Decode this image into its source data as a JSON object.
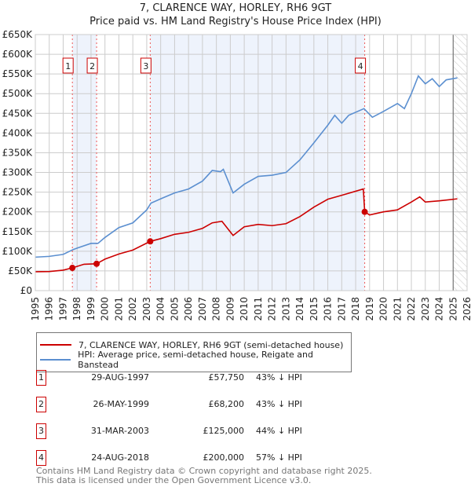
{
  "title": "7, CLARENCE WAY, HORLEY, RH6 9GT",
  "subtitle": "Price paid vs. HM Land Registry's House Price Index (HPI)",
  "colors": {
    "property": "#cc0000",
    "hpi": "#5b8fd0",
    "shade": "#eef3fc",
    "grid": "#cccccc"
  },
  "chart_data": {
    "type": "line",
    "title": "7, CLARENCE WAY, HORLEY, RH6 9GT",
    "subtitle": "Price paid vs. HM Land Registry's House Price Index (HPI)",
    "xlim": [
      1995,
      2026
    ],
    "ylim": [
      0,
      650000
    ],
    "x_ticks": [
      "1995",
      "1996",
      "1997",
      "1998",
      "1999",
      "2000",
      "2001",
      "2002",
      "2003",
      "2004",
      "2005",
      "2006",
      "2007",
      "2008",
      "2009",
      "2010",
      "2011",
      "2012",
      "2013",
      "2014",
      "2015",
      "2016",
      "2017",
      "2018",
      "2019",
      "2020",
      "2021",
      "2022",
      "2023",
      "2024",
      "2025",
      "2026"
    ],
    "y_ticks": [
      {
        "v": 0,
        "label": "£0"
      },
      {
        "v": 50000,
        "label": "£50K"
      },
      {
        "v": 100000,
        "label": "£100K"
      },
      {
        "v": 150000,
        "label": "£150K"
      },
      {
        "v": 200000,
        "label": "£200K"
      },
      {
        "v": 250000,
        "label": "£250K"
      },
      {
        "v": 300000,
        "label": "£300K"
      },
      {
        "v": 350000,
        "label": "£350K"
      },
      {
        "v": 400000,
        "label": "£400K"
      },
      {
        "v": 450000,
        "label": "£450K"
      },
      {
        "v": 500000,
        "label": "£500K"
      },
      {
        "v": 550000,
        "label": "£550K"
      },
      {
        "v": 600000,
        "label": "£600K"
      },
      {
        "v": 650000,
        "label": "£650K"
      }
    ],
    "grid": true,
    "legend_placement": "below",
    "series": [
      {
        "name": "7, CLARENCE WAY, HORLEY, RH6 9GT (semi-detached house)",
        "color": "#cc0000",
        "points": [
          [
            1995,
            48000
          ],
          [
            1996,
            48500
          ],
          [
            1997,
            52000
          ],
          [
            1997.66,
            57750
          ],
          [
            1998.5,
            67000
          ],
          [
            1999.4,
            68200
          ],
          [
            2000,
            80000
          ],
          [
            2001,
            93000
          ],
          [
            2002,
            103000
          ],
          [
            2003.25,
            125000
          ],
          [
            2004,
            132000
          ],
          [
            2005,
            143000
          ],
          [
            2006,
            148000
          ],
          [
            2007,
            158000
          ],
          [
            2007.7,
            172000
          ],
          [
            2008.4,
            176000
          ],
          [
            2009.2,
            140000
          ],
          [
            2010,
            162000
          ],
          [
            2011,
            168000
          ],
          [
            2012,
            165000
          ],
          [
            2013,
            170000
          ],
          [
            2014,
            188000
          ],
          [
            2015,
            212000
          ],
          [
            2016,
            232000
          ],
          [
            2017,
            242000
          ],
          [
            2018.55,
            258000
          ],
          [
            2018.65,
            200000
          ],
          [
            2019,
            192000
          ],
          [
            2020,
            200000
          ],
          [
            2021,
            205000
          ],
          [
            2022,
            225000
          ],
          [
            2022.6,
            238000
          ],
          [
            2023,
            225000
          ],
          [
            2024,
            228000
          ],
          [
            2025.3,
            233000
          ]
        ]
      },
      {
        "name": "HPI: Average price, semi-detached house, Reigate and Banstead",
        "color": "#5b8fd0",
        "points": [
          [
            1995,
            85000
          ],
          [
            1996,
            87000
          ],
          [
            1997,
            92000
          ],
          [
            1997.7,
            104000
          ],
          [
            1998,
            108000
          ],
          [
            1999,
            120000
          ],
          [
            1999.5,
            120000
          ],
          [
            2000,
            135000
          ],
          [
            2001,
            160000
          ],
          [
            2002,
            172000
          ],
          [
            2003,
            205000
          ],
          [
            2003.3,
            222000
          ],
          [
            2004,
            233000
          ],
          [
            2005,
            248000
          ],
          [
            2006,
            258000
          ],
          [
            2007,
            278000
          ],
          [
            2007.7,
            305000
          ],
          [
            2008.3,
            302000
          ],
          [
            2008.5,
            308000
          ],
          [
            2009.2,
            248000
          ],
          [
            2010,
            270000
          ],
          [
            2011,
            290000
          ],
          [
            2012,
            293000
          ],
          [
            2013,
            300000
          ],
          [
            2014,
            332000
          ],
          [
            2015,
            375000
          ],
          [
            2016,
            420000
          ],
          [
            2016.5,
            445000
          ],
          [
            2017,
            425000
          ],
          [
            2017.5,
            445000
          ],
          [
            2018.6,
            462000
          ],
          [
            2019.2,
            440000
          ],
          [
            2020,
            455000
          ],
          [
            2021,
            475000
          ],
          [
            2021.5,
            462000
          ],
          [
            2022,
            500000
          ],
          [
            2022.5,
            545000
          ],
          [
            2023,
            525000
          ],
          [
            2023.5,
            538000
          ],
          [
            2024,
            518000
          ],
          [
            2024.5,
            535000
          ],
          [
            2025.3,
            540000
          ]
        ]
      }
    ],
    "sales": [
      {
        "id": "1",
        "x": 1997.66,
        "price": 57750
      },
      {
        "id": "2",
        "x": 1999.4,
        "price": 68200
      },
      {
        "id": "3",
        "x": 2003.25,
        "price": 125000
      },
      {
        "id": "4",
        "x": 2018.65,
        "price": 200000
      }
    ],
    "shaded_ranges": [
      [
        1997.66,
        1999.4
      ],
      [
        2003.25,
        2018.65
      ]
    ],
    "hatched_from": 2025.0
  },
  "legend": {
    "property": "7, CLARENCE WAY, HORLEY, RH6 9GT (semi-detached house)",
    "hpi": "HPI: Average price, semi-detached house, Reigate and Banstead"
  },
  "transactions": [
    {
      "id": "1",
      "date": "29-AUG-1997",
      "price": "£57,750",
      "hpi": "43% ↓ HPI"
    },
    {
      "id": "2",
      "date": "26-MAY-1999",
      "price": "£68,200",
      "hpi": "43% ↓ HPI"
    },
    {
      "id": "3",
      "date": "31-MAR-2003",
      "price": "£125,000",
      "hpi": "44% ↓ HPI"
    },
    {
      "id": "4",
      "date": "24-AUG-2018",
      "price": "£200,000",
      "hpi": "57% ↓ HPI"
    }
  ],
  "footer": {
    "line1": "Contains HM Land Registry data © Crown copyright and database right 2025.",
    "line2": "This data is licensed under the Open Government Licence v3.0."
  }
}
